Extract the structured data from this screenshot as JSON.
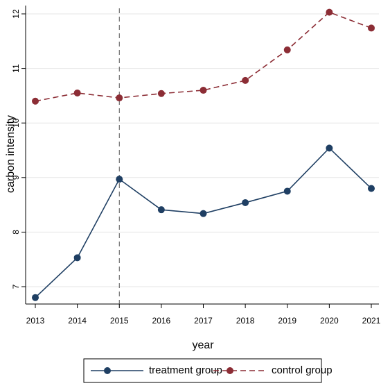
{
  "chart_data": {
    "type": "line",
    "title": "",
    "xlabel": "year",
    "ylabel": "carbon intensity",
    "x": [
      2013,
      2014,
      2015,
      2016,
      2017,
      2018,
      2019,
      2020,
      2021
    ],
    "x_tick_labels": [
      "2013",
      "2014",
      "2015",
      "2016",
      "2017",
      "2018",
      "2019",
      "2020",
      "2021"
    ],
    "y_ticks": [
      7,
      8,
      9,
      10,
      11,
      12
    ],
    "y_tick_labels": [
      "7",
      "8",
      "9",
      "10",
      "11",
      "12"
    ],
    "xlim": [
      2013,
      2021
    ],
    "ylim": [
      6.8,
      12.1
    ],
    "vertical_reference_line": 2015,
    "grid": "horizontal",
    "legend_position": "bottom",
    "series": [
      {
        "name": "treatment group",
        "line_style": "solid",
        "color": "#1f3f63",
        "values": [
          6.8,
          7.53,
          8.97,
          8.41,
          8.34,
          8.54,
          8.75,
          9.54,
          8.8
        ]
      },
      {
        "name": "control group",
        "line_style": "dashed",
        "color": "#8c2d35",
        "values": [
          10.4,
          10.55,
          10.46,
          10.54,
          10.6,
          10.78,
          11.34,
          12.03,
          11.74
        ]
      }
    ]
  }
}
